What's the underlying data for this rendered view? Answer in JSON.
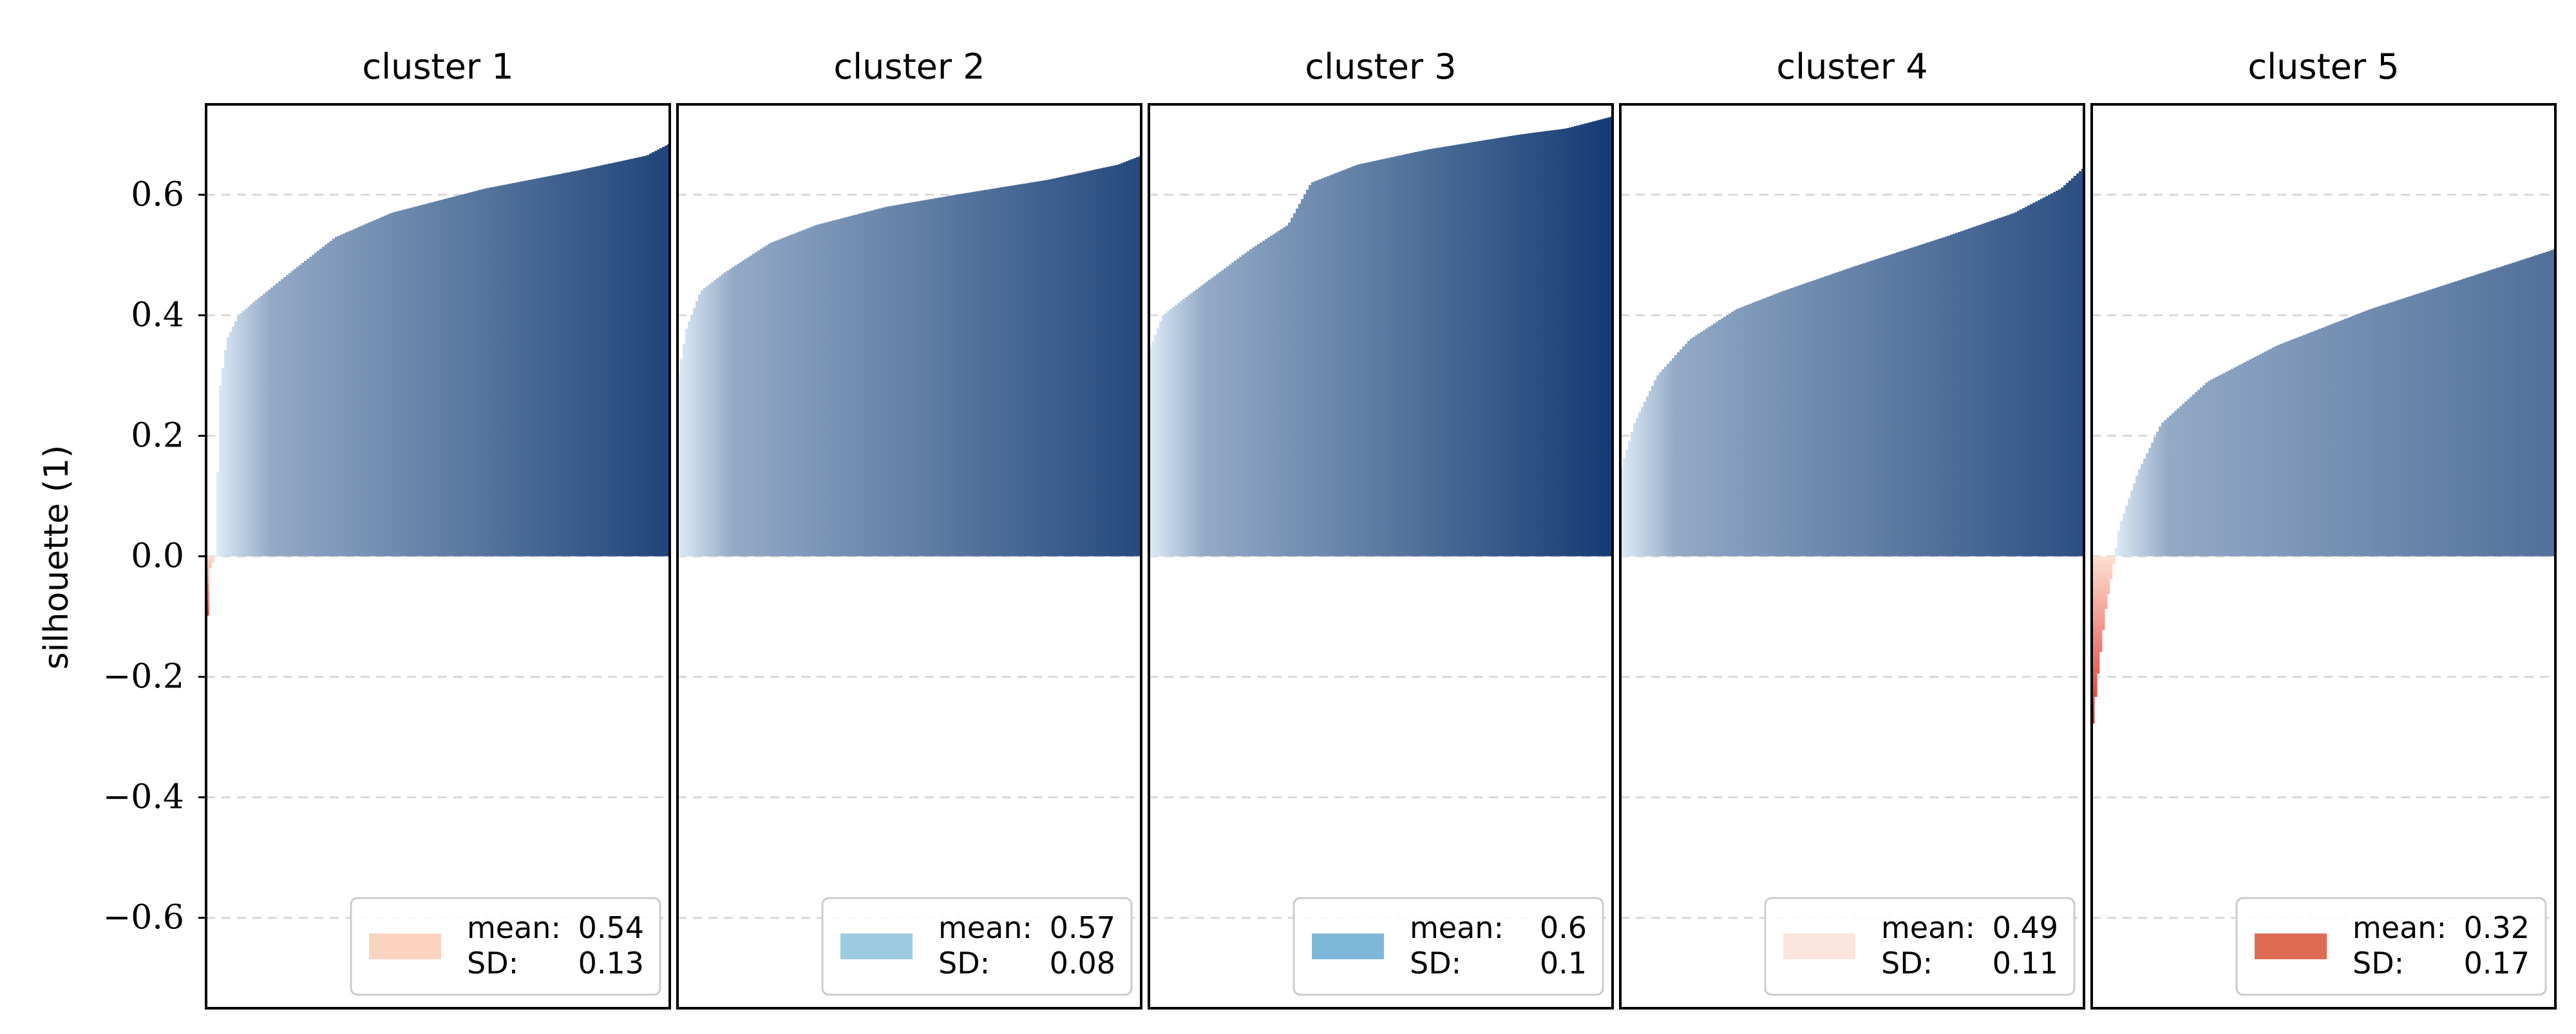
{
  "chart_data": {
    "type": "bar",
    "ylabel": "silhouette (1)",
    "ylim": [
      -0.75,
      0.75
    ],
    "yticks": [
      -0.6,
      -0.4,
      -0.2,
      0.0,
      0.2,
      0.4,
      0.6
    ],
    "ytick_labels": [
      "−0.6",
      "−0.4",
      "−0.2",
      "0.0",
      "0.2",
      "0.4",
      "0.6"
    ],
    "grid": "y dashed",
    "legend_placement": "lower right",
    "colors": {
      "positive_light": "#deebf7",
      "positive_dark": "#08306b",
      "negative_light": "#fee0d2",
      "negative_dark": "#de2d26"
    },
    "panels": [
      {
        "title": "cluster 1",
        "mean_label": "mean:",
        "mean_value": "0.54",
        "sd_label": "SD:",
        "sd_value": "0.13",
        "legend_color": "#fcd3c0",
        "profile": [
          [
            0,
            -0.14
          ],
          [
            0.008,
            -0.02
          ],
          [
            0.02,
            0.0
          ],
          [
            0.03,
            0.28
          ],
          [
            0.045,
            0.36
          ],
          [
            0.07,
            0.4
          ],
          [
            0.1,
            0.42
          ],
          [
            0.18,
            0.47
          ],
          [
            0.28,
            0.53
          ],
          [
            0.4,
            0.57
          ],
          [
            0.6,
            0.61
          ],
          [
            0.8,
            0.64
          ],
          [
            0.95,
            0.665
          ],
          [
            1.0,
            0.685
          ]
        ]
      },
      {
        "title": "cluster 2",
        "mean_label": "mean:",
        "mean_value": "0.57",
        "sd_label": "SD:",
        "sd_value": "0.08",
        "legend_color": "#9ecae1",
        "profile": [
          [
            0,
            0.29
          ],
          [
            0.02,
            0.38
          ],
          [
            0.05,
            0.44
          ],
          [
            0.1,
            0.47
          ],
          [
            0.2,
            0.52
          ],
          [
            0.3,
            0.55
          ],
          [
            0.45,
            0.58
          ],
          [
            0.6,
            0.6
          ],
          [
            0.8,
            0.625
          ],
          [
            0.95,
            0.65
          ],
          [
            1.0,
            0.665
          ]
        ]
      },
      {
        "title": "cluster 3",
        "mean_label": "mean:",
        "mean_value": "0.6",
        "sd_label": "SD:",
        "sd_value": "0.1",
        "legend_color": "#7fb7d9",
        "profile": [
          [
            0,
            0.34
          ],
          [
            0.03,
            0.4
          ],
          [
            0.08,
            0.43
          ],
          [
            0.15,
            0.47
          ],
          [
            0.22,
            0.51
          ],
          [
            0.3,
            0.55
          ],
          [
            0.35,
            0.62
          ],
          [
            0.45,
            0.65
          ],
          [
            0.6,
            0.675
          ],
          [
            0.8,
            0.7
          ],
          [
            0.9,
            0.71
          ],
          [
            1.0,
            0.73
          ]
        ]
      },
      {
        "title": "cluster 4",
        "mean_label": "mean:",
        "mean_value": "0.49",
        "sd_label": "SD:",
        "sd_value": "0.11",
        "legend_color": "#fbe5dc",
        "profile": [
          [
            0,
            0.14
          ],
          [
            0.03,
            0.22
          ],
          [
            0.08,
            0.3
          ],
          [
            0.15,
            0.36
          ],
          [
            0.25,
            0.41
          ],
          [
            0.35,
            0.44
          ],
          [
            0.5,
            0.48
          ],
          [
            0.7,
            0.53
          ],
          [
            0.85,
            0.57
          ],
          [
            0.95,
            0.61
          ],
          [
            1.0,
            0.645
          ]
        ]
      },
      {
        "title": "cluster 5",
        "mean_label": "mean:",
        "mean_value": "0.32",
        "sd_label": "SD:",
        "sd_value": "0.17",
        "legend_color": "#df6a53",
        "profile": [
          [
            0,
            -0.3
          ],
          [
            0.01,
            -0.22
          ],
          [
            0.03,
            -0.09
          ],
          [
            0.05,
            0.0
          ],
          [
            0.06,
            0.05
          ],
          [
            0.1,
            0.14
          ],
          [
            0.15,
            0.22
          ],
          [
            0.25,
            0.29
          ],
          [
            0.4,
            0.35
          ],
          [
            0.6,
            0.41
          ],
          [
            0.8,
            0.46
          ],
          [
            1.0,
            0.51
          ]
        ]
      }
    ]
  }
}
